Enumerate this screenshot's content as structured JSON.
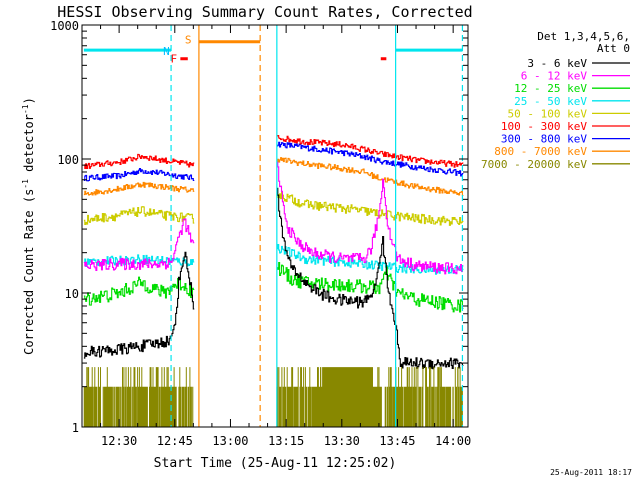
{
  "chart_data": {
    "type": "line",
    "title": "HESSI Observing Summary Count Rates, Corrected",
    "xlabel": "Start Time (25-Aug-11 12:25:02)",
    "ylabel_main": "Corrected Count Rate (s",
    "ylabel_sup1": "-1",
    "ylabel_mid": " detector",
    "ylabel_sup2": "-1",
    "ylabel_end": ")",
    "timestamp": "25-Aug-2011 18:17",
    "x_axis": {
      "min_minutes": 20,
      "max_minutes": 124,
      "ticks": [
        {
          "t": 30,
          "label": "12:30"
        },
        {
          "t": 45,
          "label": "12:45"
        },
        {
          "t": 60,
          "label": "13:00"
        },
        {
          "t": 75,
          "label": "13:15"
        },
        {
          "t": 90,
          "label": "13:30"
        },
        {
          "t": 105,
          "label": "13:45"
        },
        {
          "t": 120,
          "label": "14:00"
        }
      ]
    },
    "y_axis": {
      "scale": "log",
      "min": 1,
      "max": 1000,
      "ticks": [
        {
          "v": 1,
          "label": "1"
        },
        {
          "v": 10,
          "label": "10"
        },
        {
          "v": 100,
          "label": "100"
        },
        {
          "v": 1000,
          "label": "1000"
        }
      ]
    },
    "legend": {
      "position": "right",
      "header1": "Det 1,3,4,5,6,",
      "header2": "Att 0",
      "entries": [
        {
          "label": "3 - 6 keV",
          "color": "#000000"
        },
        {
          "label": "6 - 12 keV",
          "color": "#ff00ff"
        },
        {
          "label": "12 - 25 keV",
          "color": "#00dd00"
        },
        {
          "label": "25 - 50 keV",
          "color": "#00e5ee"
        },
        {
          "label": "50 - 100 keV",
          "color": "#cccc00"
        },
        {
          "label": "100 - 300 keV",
          "color": "#ff0000"
        },
        {
          "label": "300 - 800 keV",
          "color": "#0000ff"
        },
        {
          "label": "800 - 7000 keV",
          "color": "#ff8800"
        },
        {
          "label": "7000 - 20000 keV",
          "color": "#888800"
        }
      ]
    },
    "flags": [
      {
        "letter": "N",
        "color": "#00bfff",
        "t": 44.0
      },
      {
        "letter": "S",
        "color": "#ff8800",
        "t": 51.5
      },
      {
        "letter": "F",
        "color": "#ff0000",
        "t": 46.0
      }
    ],
    "flare_bars": [
      {
        "t0": 46.5,
        "t1": 48.5
      },
      {
        "t0": 100.5,
        "t1": 102.0
      }
    ],
    "night_bars": [
      {
        "t0": 20.5,
        "t1": 44.0,
        "y": 650
      },
      {
        "t0": 104.5,
        "t1": 122.5,
        "y": 650
      }
    ],
    "saa_bar": {
      "t0": 51.5,
      "t1": 68.0,
      "y": 750
    },
    "gaps": [
      {
        "t": 44.0,
        "color": "#00e5ee",
        "dashed": true
      },
      {
        "t": 51.5,
        "color": "#ff8800",
        "dashed": false
      },
      {
        "t": 68.0,
        "color": "#ff8800",
        "dashed": true
      },
      {
        "t": 72.5,
        "color": "#00e5ee",
        "dashed": false
      },
      {
        "t": 104.5,
        "color": "#00e5ee",
        "dashed": false
      },
      {
        "t": 122.5,
        "color": "#00e5ee",
        "dashed": true
      }
    ],
    "segments": [
      {
        "t0": 20.5,
        "t1": 50.0
      },
      {
        "t0": 72.5,
        "t1": 122.5
      }
    ],
    "series": [
      {
        "name": "300 - 800 keV",
        "color": "#0000ff",
        "noise": 0.05,
        "x": [
          20.5,
          30,
          36,
          42,
          50,
          72.5,
          80,
          90,
          96,
          100,
          110,
          122.5
        ],
        "y": [
          72,
          75,
          82,
          78,
          72,
          130,
          122,
          112,
          104,
          97,
          87,
          78
        ]
      },
      {
        "name": "100 - 300 keV",
        "color": "#ff0000",
        "noise": 0.05,
        "x": [
          20.5,
          30,
          36,
          42,
          50,
          72.5,
          80,
          90,
          96,
          100,
          110,
          122.5
        ],
        "y": [
          88,
          95,
          105,
          98,
          90,
          145,
          135,
          128,
          118,
          110,
          98,
          90
        ]
      },
      {
        "name": "800 - 7000 keV",
        "color": "#ff8800",
        "noise": 0.05,
        "x": [
          20.5,
          30,
          36,
          42,
          50,
          72.5,
          80,
          90,
          96,
          100,
          110,
          122.5
        ],
        "y": [
          55,
          60,
          65,
          62,
          58,
          100,
          92,
          85,
          80,
          72,
          62,
          55
        ]
      },
      {
        "name": "50 - 100 keV",
        "color": "#cccc00",
        "noise": 0.08,
        "x": [
          20.5,
          30,
          36,
          42,
          50,
          72.5,
          80,
          90,
          96,
          100,
          110,
          122.5
        ],
        "y": [
          35,
          38,
          41,
          38,
          36,
          55,
          46,
          43,
          41,
          39,
          36,
          34
        ]
      },
      {
        "name": "25 - 50 keV",
        "color": "#00e5ee",
        "noise": 0.08,
        "x": [
          20.5,
          30,
          36,
          42,
          50,
          72.5,
          80,
          90,
          96,
          100,
          110,
          122.5
        ],
        "y": [
          17,
          17.5,
          18,
          17.5,
          17,
          22,
          18,
          17,
          16.5,
          16,
          15,
          15
        ]
      },
      {
        "name": "6 - 12 keV",
        "color": "#ff00ff",
        "noise": 0.1,
        "x": [
          20.5,
          30,
          40,
          44,
          46,
          47.5,
          50,
          72.5,
          75,
          78,
          82,
          90,
          96,
          98,
          100,
          101,
          102.5,
          105,
          110,
          122.5
        ],
        "y": [
          16,
          16.5,
          16.5,
          17,
          26,
          35,
          22,
          90,
          32,
          24,
          20,
          18,
          18,
          22,
          40,
          70,
          30,
          18,
          16,
          15
        ]
      },
      {
        "name": "12 - 25 keV",
        "color": "#00dd00",
        "noise": 0.12,
        "x": [
          20.5,
          30,
          36,
          42,
          46,
          50,
          72.5,
          76,
          80,
          90,
          100,
          102,
          105,
          110,
          122.5
        ],
        "y": [
          9,
          10,
          12,
          10,
          12,
          10,
          16,
          13,
          12,
          11.5,
          11,
          14,
          10,
          9,
          8
        ]
      },
      {
        "name": "3 - 6 keV",
        "color": "#000000",
        "noise": 0.1,
        "x": [
          20.5,
          30,
          40,
          44,
          45,
          46,
          47.5,
          48.5,
          50,
          72.5,
          74,
          76,
          78,
          80,
          84,
          88,
          96,
          99,
          100,
          101,
          102.5,
          104.5,
          105.5,
          110,
          122.5
        ],
        "y": [
          3.6,
          3.8,
          4.2,
          4.5,
          6,
          12,
          20,
          15,
          8,
          60,
          26,
          16,
          14,
          12,
          10,
          9,
          8.5,
          11,
          18,
          24,
          10,
          6,
          3,
          3,
          3
        ]
      },
      {
        "name": "7000 - 20000 keV",
        "color": "#888800",
        "noise": 0,
        "x": [
          20.5,
          122.5
        ],
        "y": [
          1.5,
          1.5
        ]
      }
    ]
  }
}
